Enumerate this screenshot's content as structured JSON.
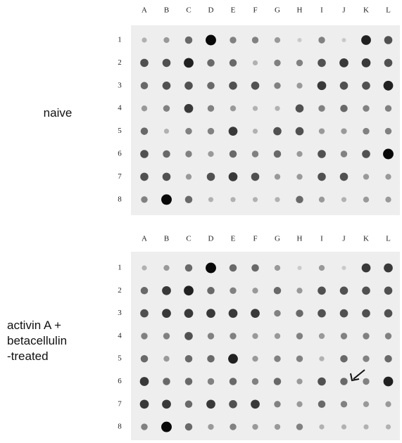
{
  "panels": [
    {
      "label": [
        "naive"
      ],
      "columns": [
        "A",
        "B",
        "C",
        "D",
        "E",
        "F",
        "G",
        "H",
        "I",
        "J",
        "K",
        "L"
      ],
      "rows": [
        "1",
        "2",
        "3",
        "4",
        "5",
        "6",
        "7",
        "8"
      ],
      "intensity": [
        [
          2,
          3,
          5,
          9,
          4,
          4,
          3,
          1,
          4,
          1,
          8,
          6
        ],
        [
          6,
          6,
          8,
          5,
          5,
          2,
          4,
          4,
          6,
          7,
          7,
          6
        ],
        [
          5,
          6,
          6,
          5,
          6,
          6,
          4,
          3,
          7,
          6,
          6,
          8
        ],
        [
          3,
          4,
          7,
          4,
          3,
          2,
          2,
          6,
          4,
          5,
          4,
          4
        ],
        [
          5,
          2,
          4,
          4,
          7,
          2,
          6,
          6,
          3,
          3,
          4,
          4
        ],
        [
          6,
          5,
          4,
          3,
          5,
          4,
          5,
          3,
          6,
          4,
          6,
          9
        ],
        [
          6,
          6,
          3,
          6,
          7,
          6,
          3,
          3,
          6,
          6,
          3,
          3
        ],
        [
          4,
          9,
          5,
          2,
          2,
          2,
          2,
          5,
          3,
          2,
          3,
          3
        ]
      ]
    },
    {
      "label": [
        "activin A +",
        "betacellulin",
        "-treated"
      ],
      "columns": [
        "A",
        "B",
        "C",
        "D",
        "E",
        "F",
        "G",
        "H",
        "I",
        "J",
        "K",
        "L"
      ],
      "rows": [
        "1",
        "2",
        "3",
        "4",
        "5",
        "6",
        "7",
        "8"
      ],
      "intensity": [
        [
          2,
          3,
          5,
          9,
          5,
          5,
          3,
          1,
          3,
          1,
          7,
          7
        ],
        [
          5,
          7,
          8,
          5,
          4,
          3,
          5,
          3,
          6,
          6,
          6,
          6
        ],
        [
          6,
          7,
          7,
          7,
          7,
          7,
          4,
          5,
          6,
          6,
          6,
          6
        ],
        [
          4,
          4,
          6,
          4,
          4,
          3,
          3,
          4,
          3,
          4,
          4,
          4
        ],
        [
          5,
          3,
          5,
          5,
          8,
          3,
          4,
          4,
          2,
          5,
          4,
          5
        ],
        [
          7,
          5,
          5,
          4,
          5,
          4,
          5,
          3,
          6,
          5,
          4,
          8
        ],
        [
          7,
          7,
          5,
          7,
          6,
          7,
          4,
          3,
          5,
          4,
          3,
          3
        ],
        [
          4,
          9,
          5,
          3,
          4,
          3,
          3,
          4,
          2,
          2,
          2,
          2
        ]
      ]
    }
  ]
}
